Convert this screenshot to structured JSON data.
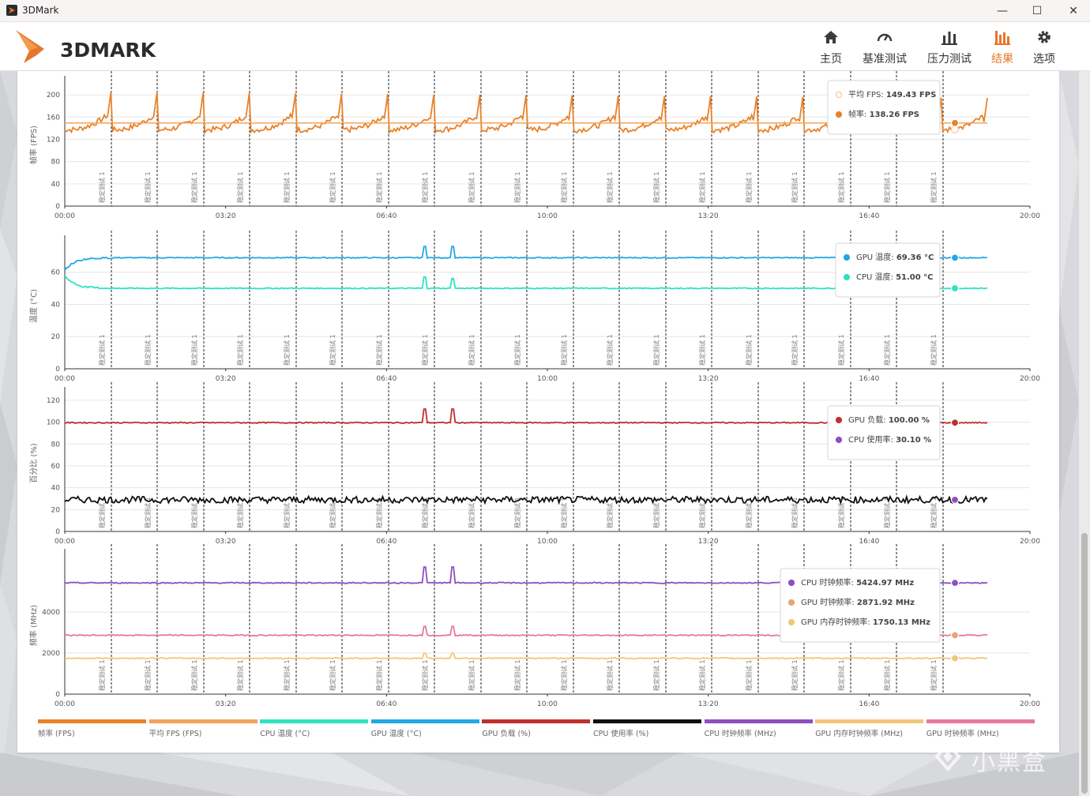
{
  "window": {
    "title": "3DMark",
    "minimize": "—",
    "maximize": "☐",
    "close": "✕"
  },
  "logo": {
    "text": "3DMARK"
  },
  "nav": [
    {
      "label": "主页",
      "icon": "home-icon",
      "active": false
    },
    {
      "label": "基准测试",
      "icon": "gauge-icon",
      "active": false
    },
    {
      "label": "压力测试",
      "icon": "bar-chart-icon",
      "active": false
    },
    {
      "label": "结果",
      "icon": "results-icon",
      "active": true
    },
    {
      "label": "选项",
      "icon": "gear-icon",
      "active": false
    }
  ],
  "colors": {
    "accent": "#e8762a",
    "fps": "#e8822a",
    "avg_fps": "#f2a35c",
    "cpu_temp": "#2ee3c0",
    "gpu_temp": "#22a9e4",
    "gpu_load": "#c0302e",
    "cpu_usage": "#111111",
    "cpu_clock": "#8e4fc0",
    "gpu_mem_clock": "#f0c878",
    "gpu_clock": "#e57aa0"
  },
  "x_ticks": [
    "00:00",
    "03:20",
    "06:40",
    "10:00",
    "13:20",
    "16:40",
    "20:00"
  ],
  "marker_label": "稳定测试 1",
  "chart_data": [
    {
      "type": "line",
      "ylabel": "帧率 (FPS)",
      "y_ticks": [
        0,
        40,
        80,
        120,
        160,
        200
      ],
      "ylim": [
        0,
        220
      ],
      "xlim_seconds": [
        0,
        1200
      ],
      "series": [
        {
          "name": "帧率 (FPS)",
          "pattern": "sawtooth",
          "base": 145,
          "peak": 205
        },
        {
          "name": "平均 FPS (FPS)",
          "constant": 149.43
        }
      ],
      "tooltip": [
        {
          "label": "平均 FPS",
          "value": "149.43 FPS",
          "color": "#f6c79a",
          "hollow": true
        },
        {
          "label": "帧率",
          "value": "138.26 FPS",
          "color": "#e8822a",
          "hollow": false
        }
      ]
    },
    {
      "type": "line",
      "ylabel": "温度 (°C)",
      "y_ticks": [
        0,
        20,
        40,
        60
      ],
      "ylim": [
        0,
        78
      ],
      "xlim_seconds": [
        0,
        1200
      ],
      "series": [
        {
          "name": "GPU 温度 (°C)",
          "start": 61,
          "steady": 69,
          "spikes": [
            76,
            76
          ]
        },
        {
          "name": "CPU 温度 (°C)",
          "start": 58,
          "steady": 50,
          "spikes": [
            57,
            56
          ]
        }
      ],
      "tooltip": [
        {
          "label": "GPU 温度",
          "value": "69.36 °C",
          "color": "#22a9e4",
          "hollow": false
        },
        {
          "label": "CPU 温度",
          "value": "51.00 °C",
          "color": "#2ee3c0",
          "hollow": false
        }
      ]
    },
    {
      "type": "line",
      "ylabel": "百分比 (%)",
      "y_ticks": [
        0,
        20,
        40,
        60,
        80,
        100,
        120
      ],
      "ylim": [
        0,
        125
      ],
      "xlim_seconds": [
        0,
        1200
      ],
      "series": [
        {
          "name": "GPU 负载 (%)",
          "steady": 99.5,
          "spikes": [
            112,
            112
          ]
        },
        {
          "name": "CPU 使用率 (%)",
          "steady": 29,
          "noise": 3
        }
      ],
      "tooltip": [
        {
          "label": "GPU 负载",
          "value": "100.00 %",
          "color": "#c0302e",
          "hollow": false
        },
        {
          "label": "CPU 使用率",
          "value": "30.10 %",
          "color": "#8e4fc0",
          "hollow": false
        }
      ]
    },
    {
      "type": "line",
      "ylabel": "频率 (MHz)",
      "y_ticks": [
        0,
        2000,
        4000
      ],
      "ylim": [
        0,
        6700
      ],
      "xlim_seconds": [
        0,
        1200
      ],
      "series": [
        {
          "name": "CPU 时钟频率 (MHz)",
          "steady": 5424.97,
          "spikes": [
            6200,
            6200
          ]
        },
        {
          "name": "GPU 时钟频率 (MHz)",
          "steady": 2871.92,
          "spikes": [
            3300,
            3300
          ]
        },
        {
          "name": "GPU 内存时钟频率 (MHz)",
          "steady": 1750.13,
          "spikes": [
            2000,
            2000
          ]
        }
      ],
      "tooltip": [
        {
          "label": "CPU 时钟频率",
          "value": "5424.97 MHz",
          "color": "#8e4fc0",
          "hollow": false
        },
        {
          "label": "GPU 时钟频率",
          "value": "2871.92 MHz",
          "color": "#e8a27a",
          "hollow": false
        },
        {
          "label": "GPU 内存时钟频率",
          "value": "1750.13 MHz",
          "color": "#f0c878",
          "hollow": false
        }
      ]
    }
  ],
  "legend": [
    {
      "label": "帧率 (FPS)",
      "color": "#e8822a"
    },
    {
      "label": "平均 FPS (FPS)",
      "color": "#f2a35c"
    },
    {
      "label": "CPU 温度 (°C)",
      "color": "#2ee3c0"
    },
    {
      "label": "GPU 温度 (°C)",
      "color": "#22a9e4"
    },
    {
      "label": "GPU 负载 (%)",
      "color": "#c0302e"
    },
    {
      "label": "CPU 使用率 (%)",
      "color": "#111111"
    },
    {
      "label": "CPU 时钟频率 (MHz)",
      "color": "#8e4fc0"
    },
    {
      "label": "GPU 内存时钟频率 (MHz)",
      "color": "#f0c878"
    },
    {
      "label": "GPU 时钟频率 (MHz)",
      "color": "#e57aa0"
    }
  ],
  "watermark": {
    "text": "小黑盒"
  }
}
